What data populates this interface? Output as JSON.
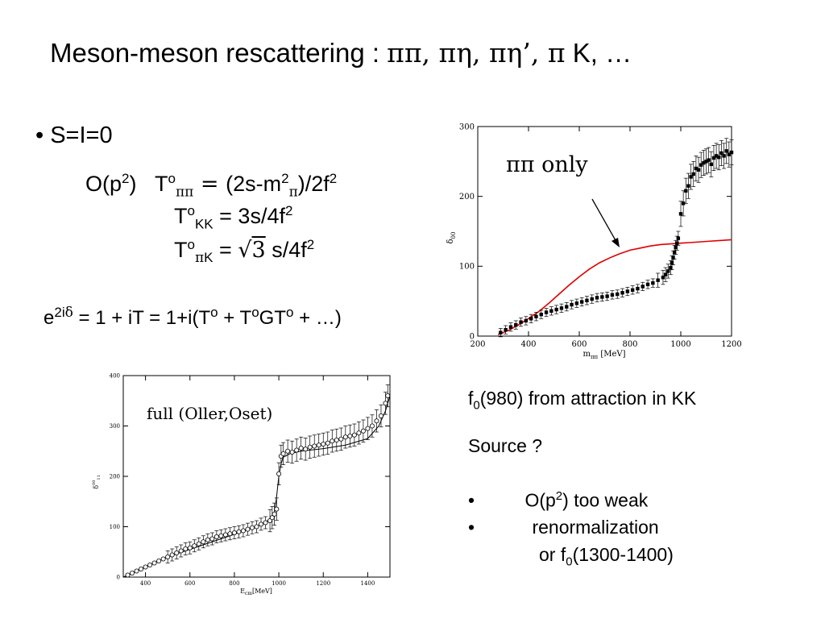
{
  "title": {
    "text": "Meson-meson rescattering : ",
    "greek": "ππ, πη, πη’, π",
    "tail": " K, …"
  },
  "bullet": "• S=I=0",
  "equations": {
    "line1": {
      "lhs": "O(p",
      "sup": "2",
      "close": ")",
      "T": "T",
      "o": "o",
      "sub": "ππ",
      "eqsym": " = ",
      "rhs_a": "(2s-m",
      "rhs_sup": "2",
      "rhs_sub": "π",
      "rhs_b": ")/2f",
      "rhs_sup2": "2"
    },
    "line2": {
      "T": "T",
      "o": "o",
      "sub": "KK",
      "rhs": " = 3s/4f",
      "rhs_sup": "2"
    },
    "line3": {
      "T": "T",
      "o": "o",
      "sub_pi": "π",
      "sub_k": "K",
      "eqsym": " =",
      "sqrt": "3",
      "rhs": " s/4f",
      "rhs_sup": "2"
    },
    "line4": {
      "e": "e",
      "sup_a": "2i",
      "sup_delta": "δ",
      "text": " = 1 + iT = 1+i(T",
      "o1": "o",
      "plus": " + T",
      "o2": "o",
      "g": "GT",
      "o3": "o",
      "tail": " + …)"
    }
  },
  "right_text": {
    "f0": "f",
    "f0_sub": "0",
    "f0_text": "(980) from attraction  in KK",
    "source": "Source ?",
    "item1_bullet": "•",
    "item1": "O(p",
    "item1_sup": "2",
    "item1_tail": ") too weak",
    "item2_bullet": "•",
    "item2": "renormalization",
    "item3": "or f",
    "item3_sub": "0",
    "item3_tail": "(1300-1400)"
  },
  "chart_data": [
    {
      "type": "scatter",
      "annotation": "ππ only",
      "xlabel": "m",
      "xlabel_sub": "ππ",
      "xlabel_unit": "[MeV]",
      "ylabel": "δ",
      "ylabel_sub": "00",
      "xlim": [
        200,
        1200
      ],
      "ylim": [
        0,
        300
      ],
      "xticks": [
        "200",
        "400",
        "600",
        "800",
        "1000",
        "1200"
      ],
      "yticks": [
        "0",
        "100",
        "200",
        "300"
      ],
      "line_color": "#e00000",
      "curve": {
        "x": [
          280,
          320,
          360,
          400,
          440,
          480,
          520,
          560,
          600,
          640,
          680,
          720,
          760,
          800,
          840,
          880,
          920,
          960,
          1000,
          1040,
          1080,
          1120,
          1160,
          1200
        ],
        "y": [
          2,
          8,
          16,
          25,
          35,
          47,
          60,
          73,
          85,
          96,
          105,
          112,
          118,
          123,
          126,
          129,
          131,
          132,
          133,
          134,
          135,
          136,
          137,
          138
        ]
      },
      "points": {
        "x": [
          290,
          310,
          330,
          350,
          370,
          390,
          410,
          430,
          450,
          470,
          490,
          510,
          530,
          550,
          570,
          590,
          610,
          630,
          650,
          670,
          690,
          710,
          730,
          750,
          770,
          790,
          810,
          830,
          850,
          870,
          890,
          910,
          930,
          940,
          950,
          960,
          965,
          970,
          975,
          980,
          985,
          990,
          1000,
          1010,
          1020,
          1030,
          1040,
          1050,
          1060,
          1070,
          1080,
          1090,
          1100,
          1110,
          1120,
          1130,
          1140,
          1150,
          1160,
          1170,
          1180,
          1190,
          1200
        ],
        "y": [
          5,
          9,
          13,
          16,
          20,
          22,
          25,
          28,
          31,
          34,
          36,
          38,
          40,
          42,
          45,
          47,
          49,
          51,
          53,
          55,
          56,
          57,
          59,
          60,
          62,
          64,
          66,
          68,
          71,
          74,
          76,
          80,
          84,
          88,
          93,
          98,
          105,
          112,
          120,
          127,
          133,
          140,
          175,
          190,
          208,
          215,
          228,
          232,
          240,
          238,
          245,
          248,
          250,
          252,
          246,
          255,
          258,
          256,
          262,
          258,
          265,
          260,
          263
        ]
      }
    },
    {
      "type": "scatter",
      "annotation": "full (Oller,Oset)",
      "xlabel": "E",
      "xlabel_sub": "cm",
      "xlabel_unit": "[MeV]",
      "ylabel": "δ",
      "ylabel_sup": "00",
      "ylabel_sub": "11",
      "xlim": [
        300,
        1500
      ],
      "ylim": [
        0,
        400
      ],
      "xticks": [
        "400",
        "600",
        "800",
        "1000",
        "1200",
        "1400"
      ],
      "yticks": [
        "0",
        "100",
        "200",
        "300",
        "400"
      ],
      "curve": {
        "x": [
          300,
          400,
          500,
          600,
          700,
          800,
          900,
          950,
          980,
          990,
          1000,
          1010,
          1020,
          1050,
          1100,
          1200,
          1300,
          1400,
          1450,
          1480,
          1500
        ],
        "y": [
          0,
          20,
          40,
          55,
          70,
          85,
          100,
          112,
          125,
          160,
          200,
          225,
          238,
          245,
          250,
          255,
          262,
          275,
          300,
          330,
          360
        ]
      },
      "points": {
        "x": [
          320,
          340,
          360,
          380,
          400,
          420,
          440,
          460,
          480,
          500,
          520,
          540,
          560,
          580,
          600,
          620,
          640,
          660,
          680,
          700,
          720,
          740,
          760,
          780,
          800,
          820,
          840,
          860,
          880,
          900,
          920,
          940,
          960,
          970,
          980,
          990,
          1000,
          1010,
          1020,
          1040,
          1060,
          1080,
          1100,
          1120,
          1140,
          1160,
          1180,
          1200,
          1220,
          1240,
          1260,
          1280,
          1300,
          1320,
          1340,
          1360,
          1380,
          1400,
          1420,
          1440,
          1460,
          1480,
          1490
        ],
        "y": [
          4,
          8,
          12,
          16,
          20,
          24,
          28,
          32,
          36,
          40,
          44,
          48,
          52,
          56,
          58,
          62,
          66,
          70,
          74,
          76,
          80,
          82,
          84,
          86,
          88,
          90,
          92,
          95,
          98,
          100,
          105,
          108,
          112,
          118,
          125,
          135,
          205,
          240,
          245,
          250,
          248,
          252,
          256,
          254,
          258,
          260,
          262,
          264,
          266,
          270,
          272,
          274,
          278,
          280,
          282,
          286,
          290,
          295,
          300,
          310,
          320,
          345,
          360
        ]
      }
    }
  ]
}
